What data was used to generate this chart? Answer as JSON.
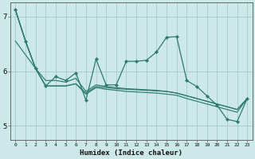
{
  "xlabel": "Humidex (Indice chaleur)",
  "ylabel": "",
  "background_color": "#cce8e8",
  "grid_color": "#aacfcf",
  "line_color": "#2e7b6e",
  "xlim": [
    -0.5,
    23.5
  ],
  "ylim": [
    4.75,
    7.25
  ],
  "yticks": [
    5,
    6,
    7
  ],
  "xticks": [
    0,
    1,
    2,
    3,
    4,
    5,
    6,
    7,
    8,
    9,
    10,
    11,
    12,
    13,
    14,
    15,
    16,
    17,
    18,
    19,
    20,
    21,
    22,
    23
  ],
  "series_main": [
    7.12,
    6.55,
    6.05,
    5.73,
    5.9,
    5.83,
    5.97,
    5.47,
    6.22,
    5.75,
    5.75,
    6.18,
    6.18,
    6.2,
    6.35,
    6.62,
    6.63,
    5.83,
    5.72,
    5.55,
    5.38,
    5.12,
    5.08,
    5.5
  ],
  "series_line1": [
    7.12,
    6.55,
    6.05,
    5.73,
    5.73,
    5.73,
    5.77,
    5.6,
    5.72,
    5.7,
    5.68,
    5.67,
    5.66,
    5.65,
    5.64,
    5.63,
    5.6,
    5.55,
    5.5,
    5.45,
    5.4,
    5.35,
    5.3,
    5.5
  ],
  "series_line2": [
    7.12,
    6.55,
    6.05,
    5.73,
    5.73,
    5.73,
    5.77,
    5.58,
    5.7,
    5.67,
    5.65,
    5.63,
    5.62,
    5.61,
    5.6,
    5.58,
    5.56,
    5.5,
    5.45,
    5.4,
    5.35,
    5.3,
    5.25,
    5.5
  ],
  "series_line3": [
    6.55,
    6.3,
    6.05,
    5.83,
    5.83,
    5.8,
    5.87,
    5.63,
    5.75,
    5.72,
    5.7,
    5.68,
    5.67,
    5.66,
    5.65,
    5.63,
    5.6,
    5.55,
    5.5,
    5.45,
    5.4,
    5.35,
    5.3,
    5.5
  ]
}
